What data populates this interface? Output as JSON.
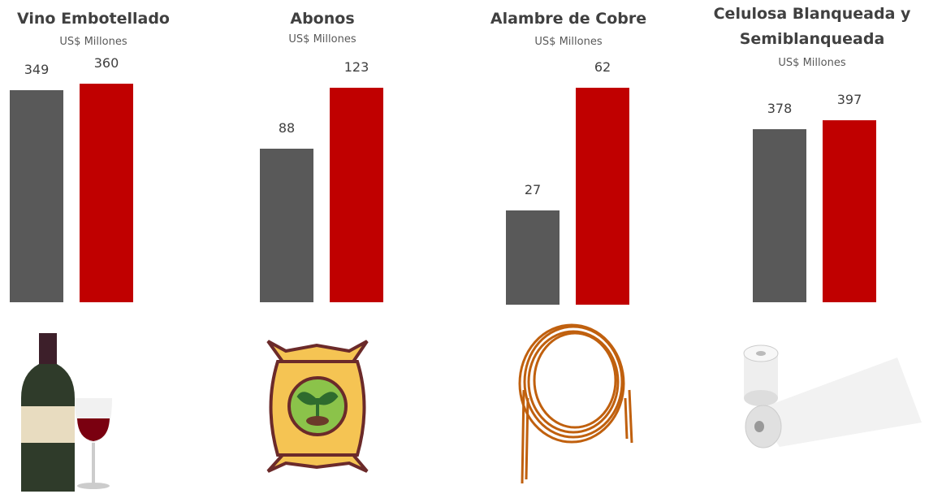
{
  "chart_data": [
    {
      "type": "bar",
      "title": "Vino Embotellado",
      "subtitle": "US$ Millones",
      "values": [
        349,
        360
      ],
      "colors": [
        "#595959",
        "#c00000"
      ]
    },
    {
      "type": "bar",
      "title": "Abonos",
      "subtitle": "US$ Millones",
      "values": [
        88,
        123
      ],
      "colors": [
        "#595959",
        "#c00000"
      ]
    },
    {
      "type": "bar",
      "title": "Alambre de Cobre",
      "subtitle": "US$ Millones",
      "values": [
        27,
        62
      ],
      "colors": [
        "#595959",
        "#c00000"
      ]
    },
    {
      "type": "bar",
      "title": "Celulosa Blanqueada y Semiblanqueada",
      "subtitle": "US$ Millones",
      "values": [
        378,
        397
      ],
      "colors": [
        "#595959",
        "#c00000"
      ]
    }
  ]
}
